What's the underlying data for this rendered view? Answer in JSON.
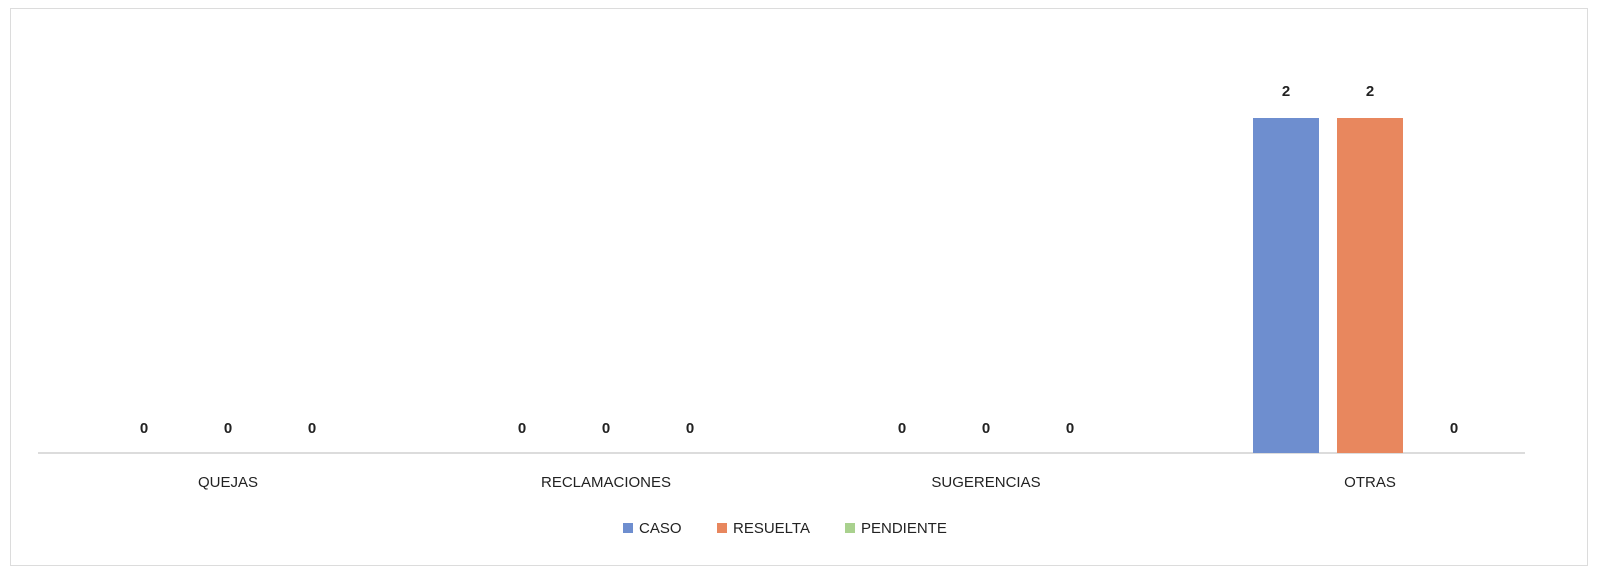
{
  "chart_data": {
    "type": "bar",
    "categories": [
      "QUEJAS",
      "RECLAMACIONES",
      "SUGERENCIAS",
      "OTRAS"
    ],
    "series": [
      {
        "name": "CASO",
        "values": [
          0,
          0,
          0,
          2
        ],
        "color": "#6E8ECF"
      },
      {
        "name": "RESUELTA",
        "values": [
          0,
          0,
          0,
          2
        ],
        "color": "#E8875E"
      },
      {
        "name": "PENDIENTE",
        "values": [
          0,
          0,
          0,
          0
        ],
        "color": "#A9D18E"
      }
    ],
    "ylim": [
      0,
      2
    ],
    "grid": false,
    "data_labels": true,
    "legend_position": "bottom"
  }
}
